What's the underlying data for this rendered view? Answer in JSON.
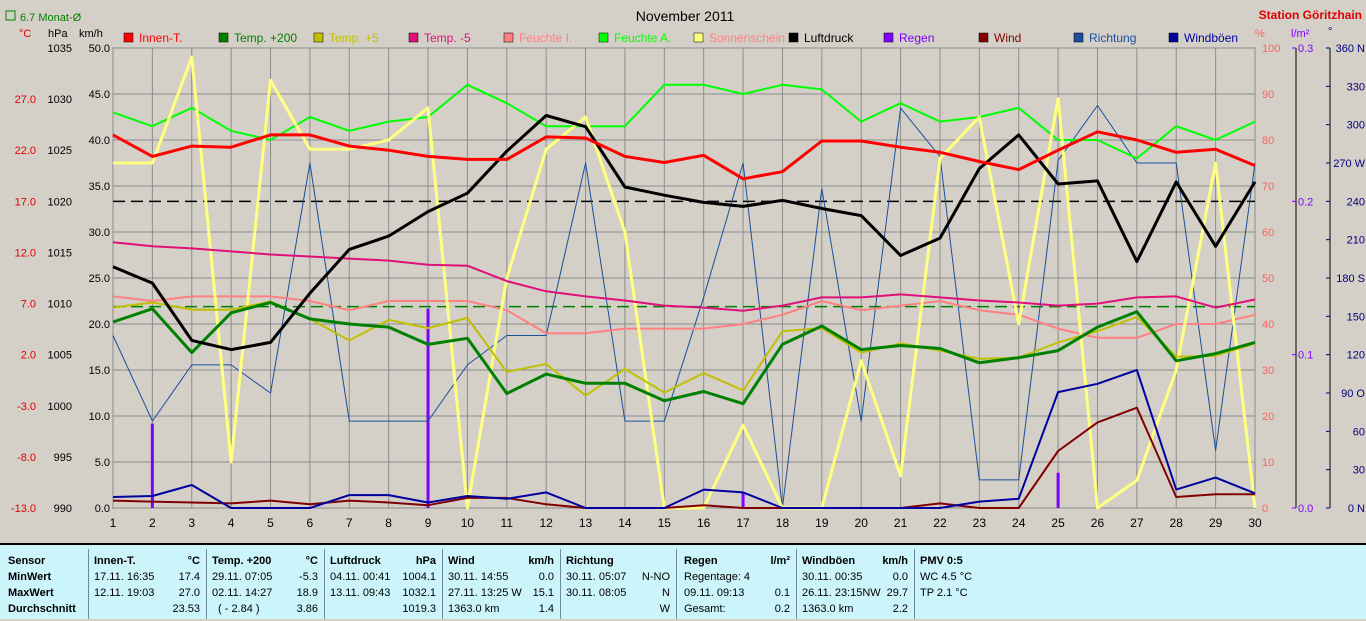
{
  "chart_data": {
    "type": "line",
    "title": "November 2011",
    "station": "Station Göritzhain",
    "monthly_avg_label": "6.7 Monat-Ø",
    "x": [
      1,
      2,
      3,
      4,
      5,
      6,
      7,
      8,
      9,
      10,
      11,
      12,
      13,
      14,
      15,
      16,
      17,
      18,
      19,
      20,
      21,
      22,
      23,
      24,
      25,
      26,
      27,
      28,
      29,
      30
    ],
    "x_ticks": [
      "1",
      "2",
      "3",
      "4",
      "5",
      "6",
      "7",
      "8",
      "9",
      "10",
      "11",
      "12",
      "13",
      "14",
      "15",
      "16",
      "17",
      "18",
      "19",
      "20",
      "21",
      "22",
      "23",
      "24",
      "25",
      "26",
      "27",
      "28",
      "29",
      "30"
    ],
    "axes": {
      "temp": {
        "unit": "°C",
        "range": [
          -13,
          32
        ],
        "ticks": [
          "-13.0",
          "-8.0",
          "-3.0",
          "2.0",
          "7.0",
          "12.0",
          "17.0",
          "22.0",
          "27.0"
        ],
        "color": "#e00000"
      },
      "pressure": {
        "unit": "hPa",
        "range": [
          990,
          1035
        ],
        "ticks": [
          "990",
          "995",
          "1000",
          "1005",
          "1010",
          "1015",
          "1020",
          "1025",
          "1030",
          "1035"
        ],
        "color": "#000000"
      },
      "wind": {
        "unit": "km/h",
        "range": [
          0,
          50
        ],
        "ticks": [
          "0.0",
          "5.0",
          "10.0",
          "15.0",
          "20.0",
          "25.0",
          "30.0",
          "35.0",
          "40.0",
          "45.0",
          "50.0"
        ],
        "color": "#000000"
      },
      "humidity": {
        "unit": "%",
        "range": [
          0,
          100
        ],
        "ticks": [
          "0",
          "10",
          "20",
          "30",
          "40",
          "50",
          "60",
          "70",
          "80",
          "90",
          "100"
        ],
        "color": "#ff6060"
      },
      "rain": {
        "unit": "l/m²",
        "range": [
          0,
          0.3
        ],
        "ticks": [
          "0.0",
          "0.1",
          "0.2",
          "0.3"
        ],
        "color": "#8000ff"
      },
      "direction": {
        "unit": "°",
        "range": [
          0,
          360
        ],
        "ticks": [
          "0 N",
          "30",
          "60",
          "90 O",
          "120",
          "150",
          "180 S",
          "210",
          "240",
          "270 W",
          "300",
          "330",
          "360 N"
        ],
        "color": "#000080"
      }
    },
    "legend": [
      "Innen-T.",
      "Temp. +200",
      "Temp. +5",
      "Temp. -5",
      "Feuchte I.",
      "Feuchte A.",
      "Sonnenschein",
      "Luftdruck",
      "Regen",
      "Wind",
      "Richtung",
      "Windböen"
    ],
    "series": [
      {
        "name": "Innen-T.",
        "axis": "temp",
        "color": "#ff0000",
        "width": 3,
        "values": [
          23.5,
          21.4,
          22.4,
          22.3,
          23.5,
          23.5,
          22.4,
          22.0,
          21.4,
          21.1,
          21.1,
          23.3,
          23.2,
          21.4,
          20.8,
          21.5,
          19.2,
          19.9,
          22.9,
          22.9,
          22.3,
          21.8,
          20.9,
          20.1,
          22.0,
          23.8,
          23.0,
          21.8,
          22.1,
          20.5
        ]
      },
      {
        "name": "Temp. +200",
        "axis": "temp",
        "color": "#008000",
        "width": 3,
        "values": [
          5.2,
          6.5,
          2.2,
          6.1,
          7.1,
          5.5,
          5.0,
          4.7,
          3.0,
          3.6,
          -1.8,
          0.1,
          -0.8,
          -0.8,
          -2.5,
          -1.6,
          -2.8,
          3.0,
          4.8,
          2.5,
          2.9,
          2.6,
          1.2,
          1.7,
          2.4,
          4.7,
          6.2,
          1.4,
          2.1,
          3.2
        ]
      },
      {
        "name": "Temp. +5",
        "axis": "temp",
        "color": "#c0c000",
        "width": 2,
        "values": [
          6.6,
          7.1,
          6.4,
          6.4,
          7.2,
          5.5,
          3.4,
          5.4,
          4.6,
          5.6,
          0.3,
          1.1,
          -2.0,
          0.6,
          -1.7,
          0.2,
          -1.5,
          4.3,
          4.6,
          2.2,
          3.1,
          2.4,
          1.6,
          1.7,
          3.2,
          4.3,
          5.7,
          1.8,
          1.9,
          3.1
        ]
      },
      {
        "name": "Temp. -5",
        "axis": "temp",
        "color": "#e0107a",
        "width": 2,
        "values": [
          13.0,
          12.6,
          12.4,
          12.1,
          11.8,
          11.6,
          11.4,
          11.2,
          10.8,
          10.7,
          9.2,
          8.2,
          7.7,
          7.3,
          6.8,
          6.6,
          6.3,
          6.8,
          7.6,
          7.6,
          7.9,
          7.6,
          7.3,
          7.1,
          6.8,
          7.0,
          7.6,
          7.7,
          6.6,
          7.4
        ]
      },
      {
        "name": "Feuchte I.",
        "axis": "humidity",
        "color": "#ff8080",
        "width": 2,
        "values": [
          46,
          45,
          46,
          46,
          46,
          45,
          43,
          45,
          45,
          45,
          43,
          38,
          38,
          39,
          39,
          39,
          40,
          42,
          45,
          43,
          44,
          45,
          43,
          42,
          39,
          37,
          37,
          40,
          40,
          42
        ]
      },
      {
        "name": "Feuchte A.",
        "axis": "humidity",
        "color": "#00ff00",
        "width": 2,
        "values": [
          86,
          83,
          87,
          82,
          80,
          85,
          82,
          84,
          85,
          92,
          88,
          83,
          83,
          83,
          92,
          92,
          90,
          92,
          91,
          84,
          88,
          84,
          85,
          87,
          80,
          80,
          76,
          83,
          80,
          84
        ]
      },
      {
        "name": "Sonnenschein",
        "axis": "humidity",
        "color": "#ffff80",
        "width": 3,
        "values": [
          75,
          75,
          98,
          10,
          93,
          78,
          78,
          80,
          87,
          0,
          50,
          78,
          85,
          60,
          0,
          0,
          18,
          0,
          0,
          32,
          7,
          76,
          85,
          40,
          89,
          0,
          6,
          30,
          75,
          0
        ]
      },
      {
        "name": "Luftdruck",
        "axis": "pressure",
        "color": "#000000",
        "width": 3,
        "values": [
          1013.6,
          1012.0,
          1006.4,
          1005.5,
          1006.2,
          1011.0,
          1015.3,
          1016.6,
          1019.0,
          1020.8,
          1024.9,
          1028.4,
          1027.3,
          1021.4,
          1020.6,
          1019.9,
          1019.5,
          1020.1,
          1019.3,
          1018.6,
          1014.7,
          1016.4,
          1023.2,
          1026.5,
          1021.7,
          1022.0,
          1014.1,
          1021.9,
          1015.6,
          1021.9
        ]
      },
      {
        "name": "Wind",
        "axis": "wind",
        "color": "#800000",
        "width": 2,
        "values": [
          0.8,
          0.7,
          0.6,
          0.5,
          0.8,
          0.4,
          0.8,
          0.6,
          0.3,
          1.1,
          1.1,
          0.4,
          0.0,
          0.0,
          0.0,
          0.3,
          0.0,
          0.0,
          0.0,
          0.0,
          0.0,
          0.5,
          0.0,
          0.0,
          6.2,
          9.3,
          10.9,
          1.2,
          1.5,
          1.5
        ]
      },
      {
        "name": "Richtung",
        "axis": "direction",
        "color": "#1a4f9a",
        "width": 1,
        "values": [
          135,
          68,
          112,
          112,
          90,
          270,
          68,
          68,
          68,
          112,
          135,
          135,
          270,
          68,
          68,
          165,
          270,
          0,
          250,
          68,
          313,
          275,
          22,
          22,
          272,
          315,
          270,
          270,
          45,
          270
        ]
      },
      {
        "name": "Windböen",
        "axis": "wind",
        "color": "#0000a0",
        "width": 2,
        "values": [
          1.2,
          1.3,
          2.5,
          0.0,
          0.0,
          0.0,
          1.4,
          1.4,
          0.6,
          1.3,
          1.0,
          1.7,
          0.0,
          0.0,
          0.0,
          2.0,
          1.7,
          0.0,
          0.0,
          0.0,
          0.0,
          0.0,
          0.7,
          1.0,
          12.6,
          13.5,
          15.0,
          2.0,
          3.3,
          1.6
        ]
      }
    ],
    "rain_bars": [
      {
        "x": 2,
        "value": 0.055
      },
      {
        "x": 9,
        "value": 0.13
      },
      {
        "x": 17,
        "value": 0.01
      },
      {
        "x": 25,
        "value": 0.023
      }
    ],
    "reference_lines": [
      {
        "axis": "pressure",
        "value": 1020,
        "style": "dashed",
        "color": "#000000"
      },
      {
        "axis": "temp",
        "value": 6.7,
        "style": "dashed",
        "color": "#008000"
      }
    ],
    "grid": true
  },
  "table": {
    "sensor": {
      "title": "Sensor",
      "rows": [
        "MinWert",
        "MaxWert",
        "Durchschnitt"
      ]
    },
    "innen": {
      "title": "Innen-T.",
      "unit": "°C",
      "min_time": "17.11.  16:35",
      "min_val": "17.4",
      "max_time": "12.11.  19:03",
      "max_val": "27.0",
      "avg": "23.53"
    },
    "temp200": {
      "title": "Temp. +200",
      "unit": "°C",
      "min_time": "29.11.  07:05",
      "min_val": "-5.3",
      "max_time": "02.11.  14:27",
      "max_val": "18.9",
      "avg_extra": "( - 2.84 )",
      "avg": "3.86"
    },
    "druck": {
      "title": "Luftdruck",
      "unit": "hPa",
      "min_time": "04.11.  00:41",
      "min_val": "1004.1",
      "max_time": "13.11.  09:43",
      "max_val": "1032.1",
      "avg": "1019.3"
    },
    "wind": {
      "title": "Wind",
      "unit": "km/h",
      "min_time": "30.11.  14:55",
      "min_val": "0.0",
      "max_time": "27.11.  13:25 W",
      "max_val": "15.1",
      "avg_label": "1363.0 km",
      "avg": "1.4"
    },
    "richtung": {
      "title": "Richtung",
      "min_time": "30.11.  05:07",
      "min_val": "N-NO",
      "max_time": "30.11.  08:05",
      "max_val": "N",
      "avg": "W"
    },
    "regen": {
      "title": "Regen",
      "unit": "l/m²",
      "row1": "Regentage: 4",
      "row2_time": "09.11.  09:13",
      "row2_val": "0.1",
      "row3_label": "Gesamt:",
      "row3_val": "0.2"
    },
    "boeen": {
      "title": "Windböen",
      "unit": "km/h",
      "min_time": "30.11.  00:35",
      "min_val": "0.0",
      "max_time": "26.11.  23:15NW",
      "max_val": "29.7",
      "avg_label": "1363.0 km",
      "avg": "2.2"
    },
    "pmv": {
      "title": "PMV 0:5",
      "row1": "WC 4.5 °C",
      "row2": "TP 2.1 °C"
    }
  }
}
